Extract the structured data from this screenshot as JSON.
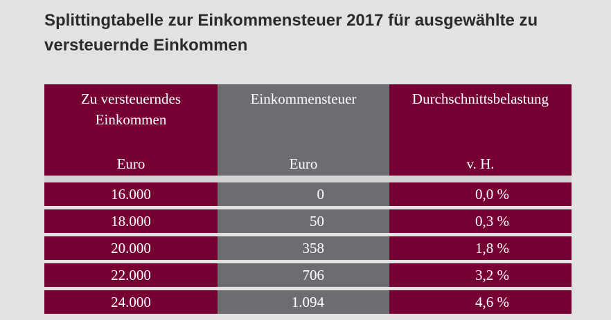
{
  "title": "Splittingtabelle zur Einkommensteuer 2017 für ausgewählte zu versteuernde Einkommen",
  "colors": {
    "accent": "#760033",
    "gray_column": "#6b6d71",
    "background": "#e2e2e3"
  },
  "table": {
    "headers": [
      {
        "label": "Zu versteuerndes Einkommen",
        "unit": "Euro"
      },
      {
        "label": "Einkommensteuer",
        "unit": "Euro"
      },
      {
        "label": "Durchschnittsbelastung",
        "unit": "v. H."
      }
    ],
    "rows": [
      {
        "einkommen": "16.000",
        "steuer": "0",
        "belastung": "0,0 %"
      },
      {
        "einkommen": "18.000",
        "steuer": "50",
        "belastung": "0,3 %"
      },
      {
        "einkommen": "20.000",
        "steuer": "358",
        "belastung": "1,8 %"
      },
      {
        "einkommen": "22.000",
        "steuer": "706",
        "belastung": "3,2 %"
      },
      {
        "einkommen": "24.000",
        "steuer": "1.094",
        "belastung": "4,6 %"
      }
    ]
  }
}
